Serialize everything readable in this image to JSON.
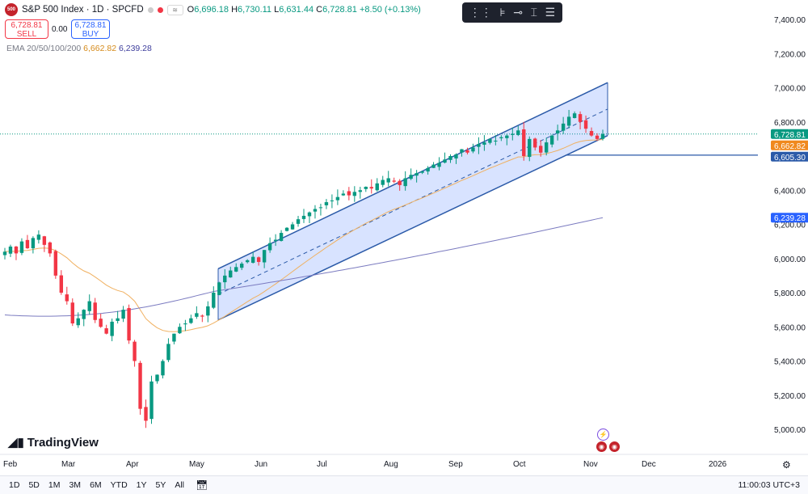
{
  "header": {
    "logo_text": "500",
    "symbol": "S&P 500 Index · 1D · SPCFD",
    "open_label": "O",
    "open": "6,696.18",
    "high_label": "H",
    "high": "6,730.11",
    "low_label": "L",
    "low": "6,631.44",
    "close_label": "C",
    "close": "6,728.81",
    "change": "+8.50 (+0.13%)",
    "pill_label": "≋"
  },
  "trade": {
    "sell_price": "6,728.81",
    "sell_label": "SELL",
    "spread": "0.00",
    "buy_price": "6,728.81",
    "buy_label": "BUY"
  },
  "indicators": {
    "ema_label": "EMA 20/50/100/200",
    "ema_value_1": "6,662.82",
    "ema_value_2": "6,239.28"
  },
  "toolbar": {
    "icons": [
      "drag-handle-icon",
      "fib-tool-icon",
      "line-tool-icon",
      "measure-icon",
      "settings-lines-icon"
    ]
  },
  "price_axis": {
    "ticks": [
      "7,400.00",
      "7,200.00",
      "7,000.00",
      "6,800.00",
      "6,600.00",
      "6,400.00",
      "6,200.00",
      "6,000.00",
      "5,800.00",
      "5,600.00",
      "5,400.00",
      "5,200.00",
      "5,000.00"
    ],
    "labels": [
      {
        "text": "6,728.81",
        "color": "#089981"
      },
      {
        "text": "6,662.82",
        "color": "#f0891e"
      },
      {
        "text": "6,605.30",
        "color": "#2b5aa8"
      },
      {
        "text": "6,239.28",
        "color": "#2962ff"
      }
    ]
  },
  "time_axis": {
    "ticks": [
      "Feb",
      "Mar",
      "Apr",
      "May",
      "Jun",
      "Jul",
      "Aug",
      "Sep",
      "Oct",
      "Nov",
      "Dec",
      "2026"
    ]
  },
  "watermark": "TradingView",
  "bottom_bar": {
    "timeframes": [
      "1D",
      "5D",
      "1M",
      "3M",
      "6M",
      "YTD",
      "1Y",
      "5Y",
      "All"
    ],
    "clock": "11:00:03 UTC+3"
  },
  "chart_data": {
    "type": "candlestick",
    "y_range": [
      4780,
      7500
    ],
    "x_axis": [
      "Feb",
      "Mar",
      "Apr",
      "May",
      "Jun",
      "Jul",
      "Aug",
      "Sep",
      "Oct",
      "Nov",
      "Dec",
      "2026"
    ],
    "colors": {
      "up": "#089981",
      "down": "#f23645",
      "ema_fast": "#f0b060",
      "ema_slow": "#7b7bc0",
      "channel": "#2b5aa8"
    },
    "close_path": [
      6040,
      6070,
      6030,
      6100,
      6060,
      6120,
      6140,
      6080,
      6030,
      5900,
      5800,
      5750,
      5620,
      5650,
      5700,
      5750,
      5640,
      5600,
      5560,
      5630,
      5650,
      5700,
      5520,
      5400,
      5120,
      5050,
      5280,
      5320,
      5400,
      5500,
      5560,
      5600,
      5620,
      5650,
      5680,
      5660,
      5720,
      5800,
      5860,
      5900,
      5930,
      5950,
      5970,
      5990,
      6010,
      5980,
      6050,
      6090,
      6110,
      6150,
      6180,
      6200,
      6230,
      6250,
      6270,
      6290,
      6300,
      6330,
      6340,
      6360,
      6380,
      6370,
      6390,
      6400,
      6420,
      6410,
      6440,
      6460,
      6470,
      6450,
      6430,
      6470,
      6490,
      6500,
      6510,
      6530,
      6550,
      6560,
      6580,
      6600,
      6610,
      6640,
      6620,
      6650,
      6670,
      6680,
      6700,
      6690,
      6710,
      6720,
      6730,
      6750,
      6600,
      6700,
      6650,
      6620,
      6680,
      6720,
      6750,
      6790,
      6830,
      6850,
      6800,
      6760,
      6720,
      6700,
      6729
    ],
    "channel_upper": {
      "start": 5940,
      "end": 7030
    },
    "channel_lower": {
      "start": 5640,
      "end": 6720
    },
    "support_level": 6605.3,
    "ema_fast_last": 6662.82,
    "ema_slow_last": 6239.28,
    "last_price": 6728.81
  }
}
